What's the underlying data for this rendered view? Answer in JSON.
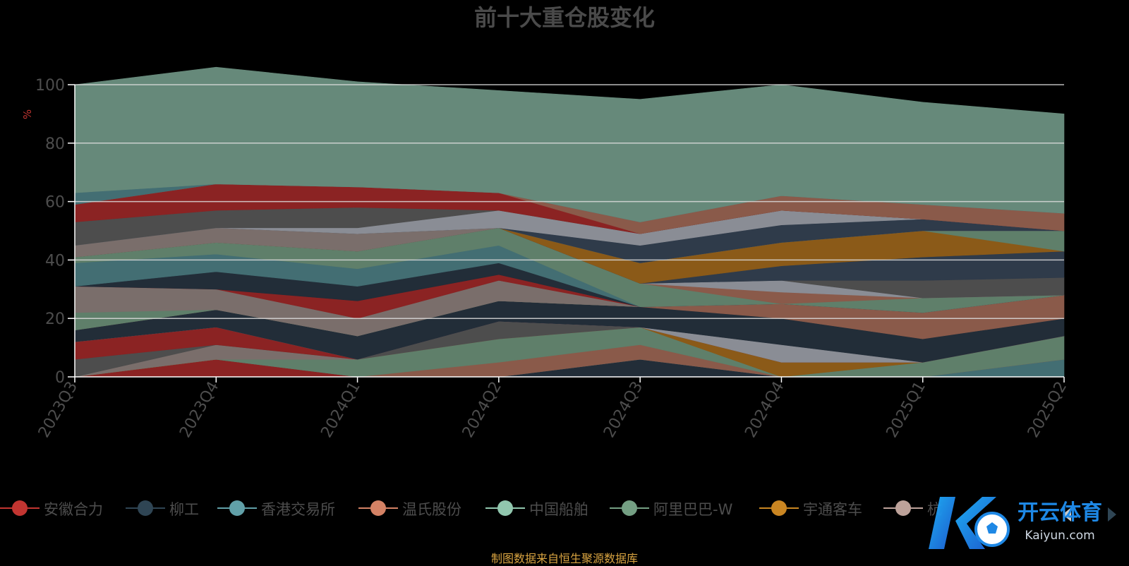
{
  "title": "前十大重仓股变化",
  "source_note": "制图数据来自恒生聚源数据库",
  "watermark": {
    "text": "开云体育",
    "subtext": "Kaiyun.com"
  },
  "legend_nav": {
    "prev_icon": "chevron-left-icon",
    "next_icon": "chevron-right-icon"
  },
  "chart_data": {
    "type": "area",
    "stacked": true,
    "title": "前十大重仓股变化",
    "ylabel": "%",
    "ylim": [
      0,
      100
    ],
    "yticks": [
      0,
      20,
      40,
      60,
      80,
      100
    ],
    "grid": true,
    "legend_position": "bottom",
    "x": [
      "2023Q3",
      "2023Q4",
      "2024Q1",
      "2024Q2",
      "2024Q3",
      "2024Q4",
      "2025Q1",
      "2025Q2"
    ],
    "legend": [
      {
        "name": "安徽合力",
        "color": "#c23531"
      },
      {
        "name": "柳工",
        "color": "#2f4554"
      },
      {
        "name": "香港交易所",
        "color": "#61a0a8"
      },
      {
        "name": "温氏股份",
        "color": "#d48265"
      },
      {
        "name": "中国船舶",
        "color": "#91c7ae"
      },
      {
        "name": "阿里巴巴-W",
        "color": "#749f83"
      },
      {
        "name": "宇通客车",
        "color": "#ca8622"
      },
      {
        "name": "杭",
        "color": "#bda29a"
      }
    ],
    "layers": [
      {
        "color": "#8b2323",
        "values": [
          0,
          6,
          0,
          0,
          0,
          0,
          0,
          0
        ]
      },
      {
        "color": "#222d38",
        "values": [
          0,
          0,
          0,
          0,
          6,
          0,
          0,
          0
        ]
      },
      {
        "color": "#436e73",
        "values": [
          0,
          0,
          0,
          0,
          0,
          0,
          0,
          6
        ]
      },
      {
        "color": "#5a5a5a",
        "values": [
          0,
          0,
          0,
          0,
          0,
          0,
          0,
          0
        ]
      },
      {
        "color": "#8a5a4a",
        "values": [
          0,
          0,
          0,
          5,
          5,
          0,
          0,
          0
        ]
      },
      {
        "color": "#5f7f6a",
        "values": [
          0,
          0,
          6,
          8,
          6,
          0,
          5,
          8
        ]
      },
      {
        "color": "#8b5a18",
        "values": [
          0,
          0,
          0,
          0,
          0,
          5,
          0,
          0
        ]
      },
      {
        "color": "#7a6e6b",
        "values": [
          0,
          5,
          0,
          0,
          0,
          0,
          0,
          0
        ]
      },
      {
        "color": "#4d4d4d",
        "values": [
          6,
          0,
          0,
          6,
          0,
          0,
          0,
          0
        ]
      },
      {
        "color": "#8b2323",
        "values": [
          6,
          6,
          0,
          0,
          0,
          0,
          0,
          0
        ]
      },
      {
        "color": "#8a8d95",
        "values": [
          0,
          0,
          0,
          0,
          0,
          6,
          0,
          0
        ]
      },
      {
        "color": "#222d38",
        "values": [
          4,
          6,
          8,
          7,
          7,
          9,
          8,
          6
        ]
      },
      {
        "color": "#8a5a4a",
        "values": [
          0,
          0,
          0,
          0,
          0,
          5,
          9,
          8
        ]
      },
      {
        "color": "#5f7f6a",
        "values": [
          6,
          0,
          0,
          0,
          0,
          0,
          0,
          0
        ]
      },
      {
        "color": "#7a6e6b",
        "values": [
          9,
          7,
          6,
          7,
          0,
          0,
          0,
          0
        ]
      },
      {
        "color": "#8b2323",
        "values": [
          0,
          0,
          6,
          2,
          0,
          0,
          0,
          0
        ]
      },
      {
        "color": "#222d38",
        "values": [
          0,
          6,
          5,
          4,
          0,
          0,
          0,
          0
        ]
      },
      {
        "color": "#436e73",
        "values": [
          8,
          6,
          6,
          6,
          0,
          0,
          0,
          0
        ]
      },
      {
        "color": "#5f7f6a",
        "values": [
          2,
          4,
          6,
          6,
          8,
          0,
          5,
          0
        ]
      },
      {
        "color": "#8a5a4a",
        "values": [
          0,
          0,
          0,
          0,
          0,
          4,
          0,
          0
        ]
      },
      {
        "color": "#8a8d95",
        "values": [
          0,
          0,
          0,
          0,
          0,
          4,
          0,
          0
        ]
      },
      {
        "color": "#4d4d4d",
        "values": [
          0,
          0,
          0,
          0,
          0,
          0,
          6,
          6
        ]
      },
      {
        "color": "#2f3b4a",
        "values": [
          0,
          0,
          0,
          0,
          0,
          5,
          8,
          9
        ]
      },
      {
        "color": "#8b5a18",
        "values": [
          0,
          0,
          0,
          0,
          7,
          8,
          9,
          0
        ]
      },
      {
        "color": "#5f7f6a",
        "values": [
          0,
          0,
          0,
          0,
          0,
          0,
          0,
          7
        ]
      },
      {
        "color": "#7a6e6b",
        "values": [
          4,
          5,
          6,
          0,
          0,
          0,
          0,
          0
        ]
      },
      {
        "color": "#2f3b4a",
        "values": [
          0,
          0,
          0,
          0,
          6,
          6,
          4,
          0
        ]
      },
      {
        "color": "#8a8d95",
        "values": [
          0,
          0,
          2,
          6,
          4,
          5,
          0,
          0
        ]
      },
      {
        "color": "#4d4d4d",
        "values": [
          8,
          6,
          7,
          0,
          0,
          0,
          0,
          0
        ]
      },
      {
        "color": "#8b2323",
        "values": [
          6,
          9,
          7,
          6,
          0,
          0,
          0,
          0
        ]
      },
      {
        "color": "#8a5a4a",
        "values": [
          0,
          0,
          0,
          0,
          4,
          5,
          5,
          6
        ]
      },
      {
        "color": "#436e73",
        "values": [
          4,
          0,
          0,
          0,
          0,
          0,
          0,
          0
        ]
      },
      {
        "color": "#66897a",
        "values": [
          37,
          40,
          36,
          35,
          42,
          38,
          35,
          34
        ]
      }
    ]
  }
}
